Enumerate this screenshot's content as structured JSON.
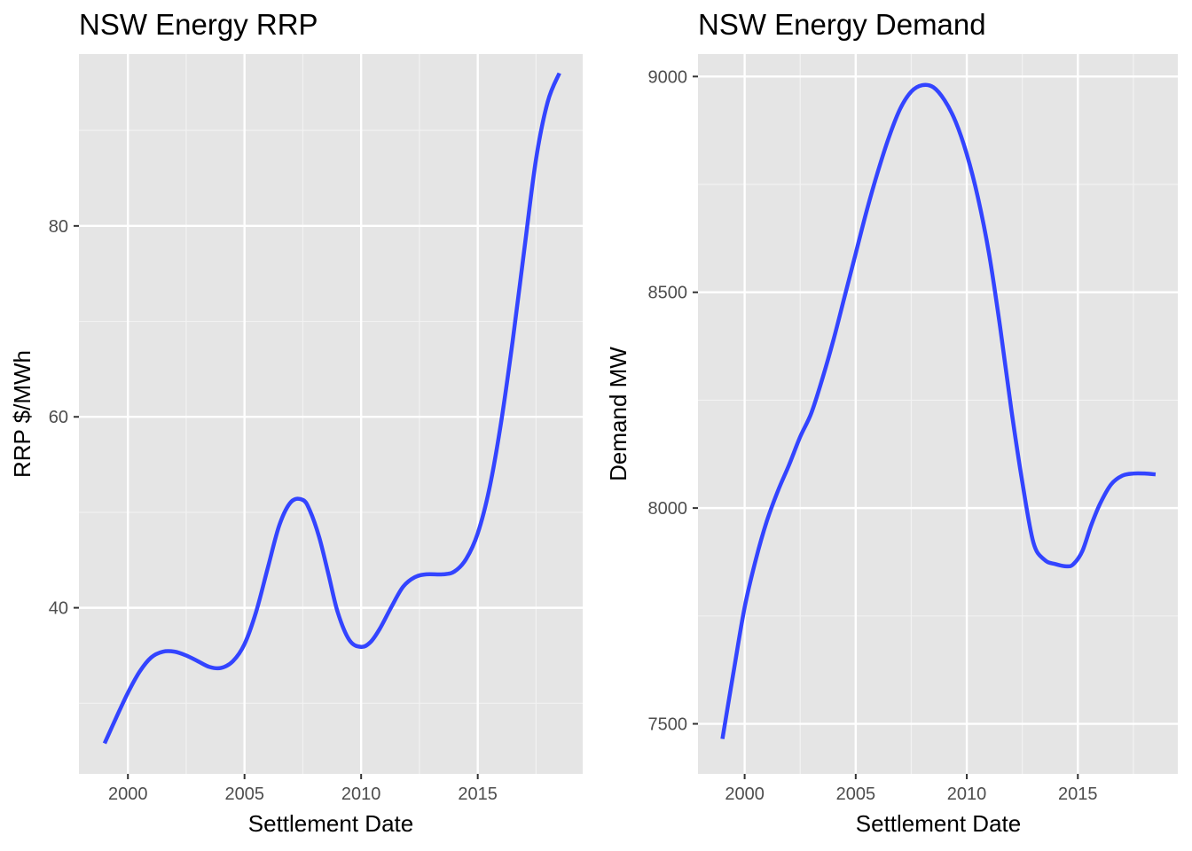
{
  "chart_data": [
    {
      "type": "line",
      "title": "NSW Energy RRP",
      "xlabel": "Settlement Date",
      "ylabel": "RRP $/MWh",
      "xlim": [
        1997.9,
        2019.5
      ],
      "ylim": [
        22.6,
        98.0
      ],
      "x_ticks": [
        2000,
        2005,
        2010,
        2015
      ],
      "x_tick_labels": [
        "2000",
        "2005",
        "2010",
        "2015"
      ],
      "y_ticks": [
        40,
        60,
        80
      ],
      "y_tick_labels": [
        "40",
        "60",
        "80"
      ],
      "grid": true,
      "background": "#e5e5e5",
      "line_color": "#3344ff",
      "series": [
        {
          "x": [
            1999.0,
            1999.5,
            2000.0,
            2000.5,
            2001.0,
            2001.5,
            2002.0,
            2002.5,
            2003.0,
            2003.5,
            2004.0,
            2004.5,
            2005.0,
            2005.5,
            2006.0,
            2006.5,
            2007.0,
            2007.5,
            2007.8,
            2008.2,
            2008.6,
            2009.0,
            2009.5,
            2010.0,
            2010.4,
            2010.8,
            2011.3,
            2011.8,
            2012.3,
            2012.8,
            2013.5,
            2014.0,
            2014.5,
            2015.0,
            2015.5,
            2016.0,
            2016.5,
            2017.0,
            2017.5,
            2018.0,
            2018.5
          ],
          "y": [
            25.8,
            28.5,
            31.1,
            33.3,
            34.8,
            35.4,
            35.4,
            35.0,
            34.4,
            33.8,
            33.7,
            34.4,
            36.2,
            39.6,
            44.2,
            48.7,
            51.1,
            51.3,
            50.2,
            47.4,
            43.5,
            39.5,
            36.6,
            35.9,
            36.4,
            37.8,
            40.1,
            42.2,
            43.2,
            43.5,
            43.5,
            43.8,
            45.1,
            47.8,
            52.5,
            59.4,
            68.0,
            77.6,
            87.0,
            93.0,
            96.0
          ]
        }
      ]
    },
    {
      "type": "line",
      "title": "NSW Energy Demand",
      "xlabel": "Settlement Date",
      "ylabel": "Demand MW",
      "xlim": [
        1997.9,
        2019.5
      ],
      "ylim": [
        7384,
        9052
      ],
      "x_ticks": [
        2000,
        2005,
        2010,
        2015
      ],
      "x_tick_labels": [
        "2000",
        "2005",
        "2010",
        "2015"
      ],
      "y_ticks": [
        7500,
        8000,
        8500,
        9000
      ],
      "y_tick_labels": [
        "7500",
        "8000",
        "8500",
        "9000"
      ],
      "grid": true,
      "background": "#e5e5e5",
      "line_color": "#3344ff",
      "series": [
        {
          "x": [
            1999.0,
            1999.5,
            2000.0,
            2000.5,
            2001.0,
            2001.5,
            2002.0,
            2002.5,
            2003.0,
            2003.5,
            2004.0,
            2004.5,
            2005.0,
            2005.5,
            2006.0,
            2006.5,
            2007.0,
            2007.5,
            2008.0,
            2008.5,
            2009.0,
            2009.5,
            2010.0,
            2010.5,
            2011.0,
            2011.5,
            2012.0,
            2012.5,
            2013.0,
            2013.5,
            2014.0,
            2014.5,
            2014.8,
            2015.2,
            2015.6,
            2016.0,
            2016.5,
            2017.0,
            2017.5,
            2018.0,
            2018.5
          ],
          "y": [
            7465,
            7620,
            7770,
            7880,
            7970,
            8040,
            8100,
            8165,
            8220,
            8300,
            8390,
            8490,
            8590,
            8690,
            8780,
            8860,
            8925,
            8965,
            8980,
            8975,
            8945,
            8895,
            8820,
            8720,
            8590,
            8420,
            8230,
            8060,
            7920,
            7880,
            7870,
            7865,
            7870,
            7900,
            7960,
            8010,
            8055,
            8075,
            8080,
            8080,
            8078
          ]
        }
      ]
    }
  ]
}
